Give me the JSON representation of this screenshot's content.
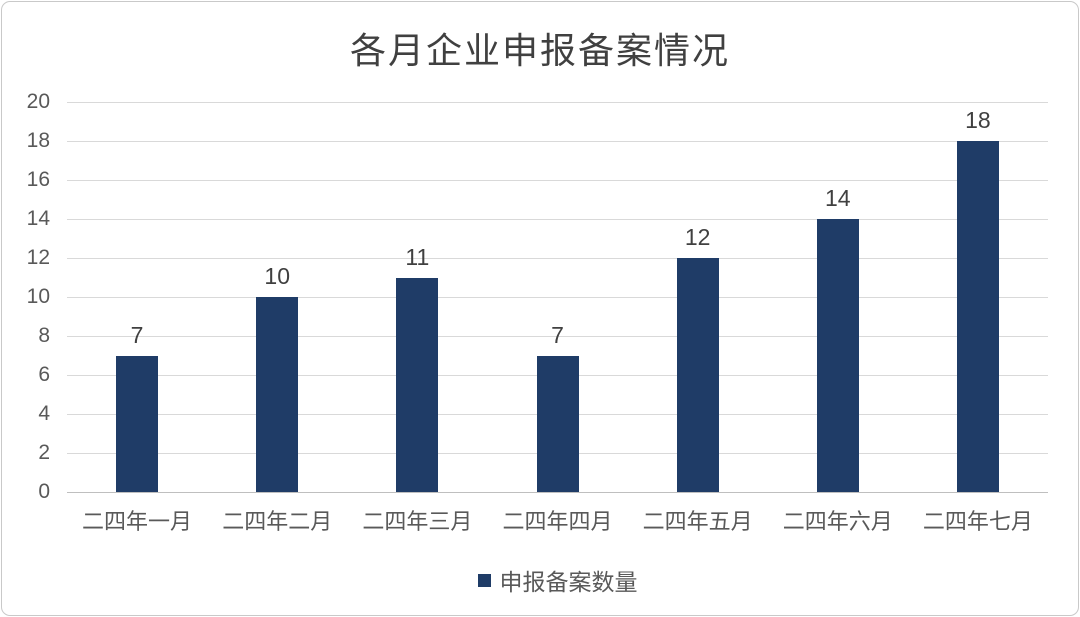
{
  "chart_data": {
    "type": "bar",
    "title": "各月企业申报备案情况",
    "categories": [
      "二四年一月",
      "二四年二月",
      "二四年三月",
      "二四年四月",
      "二四年五月",
      "二四年六月",
      "二四年七月"
    ],
    "series": [
      {
        "name": "申报备案数量",
        "values": [
          7,
          10,
          11,
          7,
          12,
          14,
          18
        ]
      }
    ],
    "ylim": [
      0,
      20
    ],
    "ytick_step": 2,
    "ytick_labels": [
      "0",
      "2",
      "4",
      "6",
      "8",
      "10",
      "12",
      "14",
      "16",
      "18",
      "20"
    ],
    "grid": true,
    "data_labels": true,
    "legend_position": "bottom",
    "colors": {
      "bar": "#1f3c67",
      "title_text": "#404040",
      "axis_text": "#595959",
      "data_label_text": "#404040",
      "gridline": "#d9d9d9",
      "axis_line": "#bfbfbf",
      "frame_border": "#c9c9c9",
      "background": "#ffffff"
    }
  }
}
